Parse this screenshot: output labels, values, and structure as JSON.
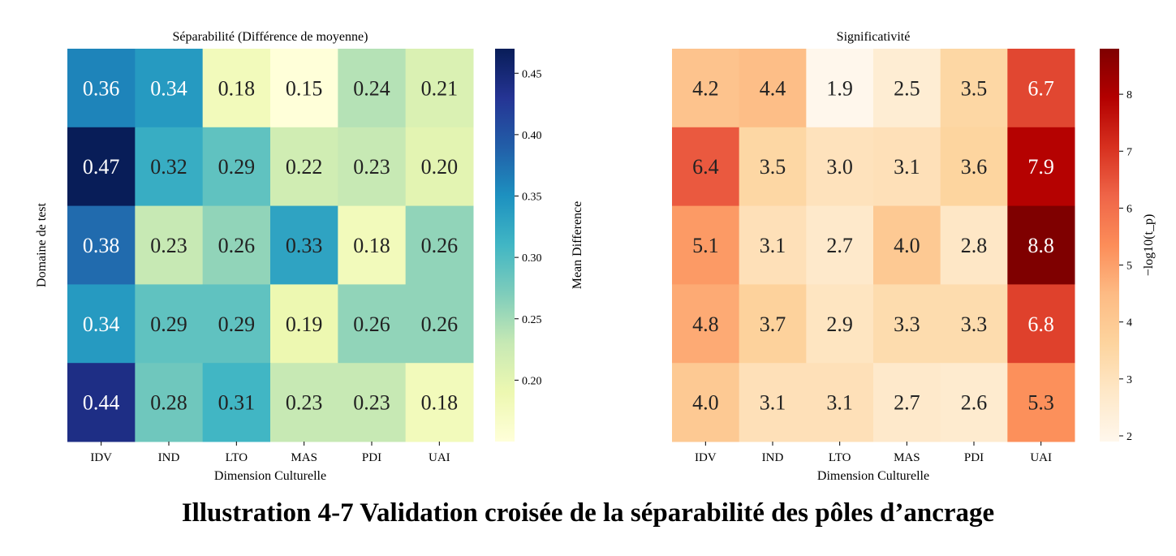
{
  "caption": "Illustration 4-7 Validation croisée de la séparabilité des pôles d’ancrage",
  "chart_data": [
    {
      "type": "heatmap",
      "title": "Séparabilité (Différence de moyenne)",
      "xlabel": "Dimension Culturelle",
      "ylabel": "Domaine de test",
      "x_categories": [
        "IDV",
        "IND",
        "LTO",
        "MAS",
        "PDI",
        "UAI"
      ],
      "y_categories": [],
      "values": [
        [
          0.36,
          0.34,
          0.18,
          0.15,
          0.24,
          0.21
        ],
        [
          0.47,
          0.32,
          0.29,
          0.22,
          0.23,
          0.2
        ],
        [
          0.38,
          0.23,
          0.26,
          0.33,
          0.18,
          0.26
        ],
        [
          0.34,
          0.29,
          0.29,
          0.19,
          0.26,
          0.26
        ],
        [
          0.44,
          0.28,
          0.31,
          0.23,
          0.23,
          0.18
        ]
      ],
      "value_labels": [
        [
          "0.36",
          "0.34",
          "0.18",
          "0.15",
          "0.24",
          "0.21"
        ],
        [
          "0.47",
          "0.32",
          "0.29",
          "0.22",
          "0.23",
          "0.20"
        ],
        [
          "0.38",
          "0.23",
          "0.26",
          "0.33",
          "0.18",
          "0.26"
        ],
        [
          "0.34",
          "0.29",
          "0.29",
          "0.19",
          "0.26",
          "0.26"
        ],
        [
          "0.44",
          "0.28",
          "0.31",
          "0.23",
          "0.23",
          "0.18"
        ]
      ],
      "colormap": "YlGnBu",
      "color_range": [
        0.15,
        0.47
      ],
      "colorbar": {
        "label": "Mean Difference",
        "ticks": [
          0.2,
          0.25,
          0.3,
          0.35,
          0.4,
          0.45
        ],
        "tick_labels": [
          "0.20",
          "0.25",
          "0.30",
          "0.35",
          "0.40",
          "0.45"
        ]
      },
      "colors": [
        "#ffffd9",
        "#edf8b1",
        "#c7e9b4",
        "#7fcdbb",
        "#41b6c4",
        "#1d91c0",
        "#225ea8",
        "#253494",
        "#081d58"
      ]
    },
    {
      "type": "heatmap",
      "title": "Significativité",
      "xlabel": "Dimension Culturelle",
      "ylabel": "",
      "x_categories": [
        "IDV",
        "IND",
        "LTO",
        "MAS",
        "PDI",
        "UAI"
      ],
      "y_categories": [],
      "values": [
        [
          4.2,
          4.4,
          1.9,
          2.5,
          3.5,
          6.7
        ],
        [
          6.4,
          3.5,
          3.0,
          3.1,
          3.6,
          7.9
        ],
        [
          5.1,
          3.1,
          2.7,
          4.0,
          2.8,
          8.8
        ],
        [
          4.8,
          3.7,
          2.9,
          3.3,
          3.3,
          6.8
        ],
        [
          4.0,
          3.1,
          3.1,
          2.7,
          2.6,
          5.3
        ]
      ],
      "value_labels": [
        [
          "4.2",
          "4.4",
          "1.9",
          "2.5",
          "3.5",
          "6.7"
        ],
        [
          "6.4",
          "3.5",
          "3.0",
          "3.1",
          "3.6",
          "7.9"
        ],
        [
          "5.1",
          "3.1",
          "2.7",
          "4.0",
          "2.8",
          "8.8"
        ],
        [
          "4.8",
          "3.7",
          "2.9",
          "3.3",
          "3.3",
          "6.8"
        ],
        [
          "4.0",
          "3.1",
          "3.1",
          "2.7",
          "2.6",
          "5.3"
        ]
      ],
      "colormap": "OrRd",
      "color_range": [
        1.9,
        8.8
      ],
      "colorbar": {
        "label": "−log10(t_p)",
        "ticks": [
          2,
          3,
          4,
          5,
          6,
          7,
          8
        ],
        "tick_labels": [
          "2",
          "3",
          "4",
          "5",
          "6",
          "7",
          "8"
        ]
      },
      "colors": [
        "#fff7ec",
        "#fee8c8",
        "#fdd49e",
        "#fdbb84",
        "#fc8d59",
        "#ef6548",
        "#d7301f",
        "#b30000",
        "#7f0000"
      ]
    }
  ]
}
